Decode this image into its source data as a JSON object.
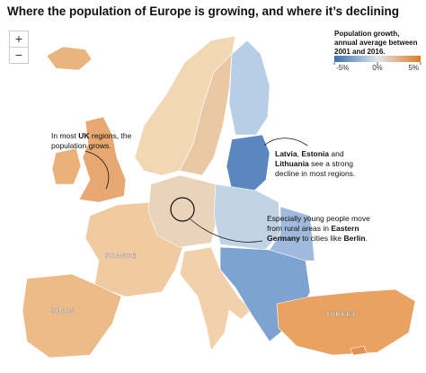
{
  "title": "Where the population of Europe is growing, and where it’s declining",
  "zoom": {
    "in": "+",
    "out": "−"
  },
  "legend": {
    "title": "Population growth, annual average between 2001 and 2016.",
    "colors": [
      "#3a6fb0",
      "#dfe6ee",
      "#e07b1c"
    ],
    "range": [
      -5,
      5
    ],
    "ticks": [
      {
        "value": -5,
        "label": "-5%"
      },
      {
        "value": 0,
        "label": "0%"
      },
      {
        "value": 5,
        "label": "5%"
      }
    ]
  },
  "annotations": [
    {
      "parts": [
        "In most ",
        "UK",
        " regions, the population grows."
      ]
    },
    {
      "parts": [
        "Latvia",
        ", ",
        "Estonia",
        " and ",
        "Lithuania",
        " see a strong decline in most regions."
      ]
    },
    {
      "parts": [
        "Especially young people move from rural areas in ",
        "Eastern Germany",
        " to cities like ",
        "Berlin",
        "."
      ]
    }
  ],
  "labels": [
    "FRANCE",
    "SPAIN",
    "TURKEY"
  ]
}
